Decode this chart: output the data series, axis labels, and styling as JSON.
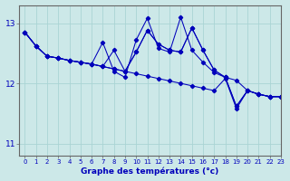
{
  "title": "",
  "xlabel": "Graphe des températures (°c)",
  "ylabel": "",
  "bg_color": "#cce8e8",
  "line_color": "#0000bb",
  "grid_color": "#aad4d4",
  "axis_color": "#666666",
  "xlim": [
    -0.5,
    23
  ],
  "ylim": [
    10.8,
    13.3
  ],
  "yticks": [
    11,
    12,
    13
  ],
  "xticks": [
    0,
    1,
    2,
    3,
    4,
    5,
    6,
    7,
    8,
    9,
    10,
    11,
    12,
    13,
    14,
    15,
    16,
    17,
    18,
    19,
    20,
    21,
    22,
    23
  ],
  "series": [
    [
      12.85,
      12.62,
      12.45,
      12.42,
      12.38,
      12.35,
      12.32,
      12.68,
      12.2,
      12.1,
      12.72,
      13.08,
      12.58,
      12.52,
      13.1,
      12.55,
      12.35,
      12.18,
      12.1,
      11.62,
      11.88,
      11.82,
      11.78,
      11.78
    ],
    [
      12.85,
      12.62,
      12.45,
      12.42,
      12.38,
      12.35,
      12.32,
      12.28,
      12.24,
      12.2,
      12.16,
      12.12,
      12.08,
      12.04,
      12.0,
      11.96,
      11.92,
      11.88,
      12.08,
      11.58,
      11.88,
      11.82,
      11.78,
      11.78
    ],
    [
      12.85,
      12.62,
      12.45,
      12.42,
      12.38,
      12.35,
      12.32,
      12.28,
      12.24,
      12.2,
      12.52,
      12.88,
      12.65,
      12.55,
      12.52,
      12.92,
      12.55,
      12.22,
      12.1,
      12.05,
      11.88,
      11.82,
      11.78,
      11.78
    ],
    [
      12.85,
      12.62,
      12.45,
      12.42,
      12.38,
      12.35,
      12.32,
      12.28,
      12.55,
      12.2,
      12.52,
      12.88,
      12.65,
      12.55,
      12.52,
      12.92,
      12.55,
      12.22,
      12.1,
      11.62,
      11.88,
      11.82,
      11.78,
      11.78
    ]
  ],
  "figsize": [
    3.2,
    2.0
  ],
  "dpi": 100
}
